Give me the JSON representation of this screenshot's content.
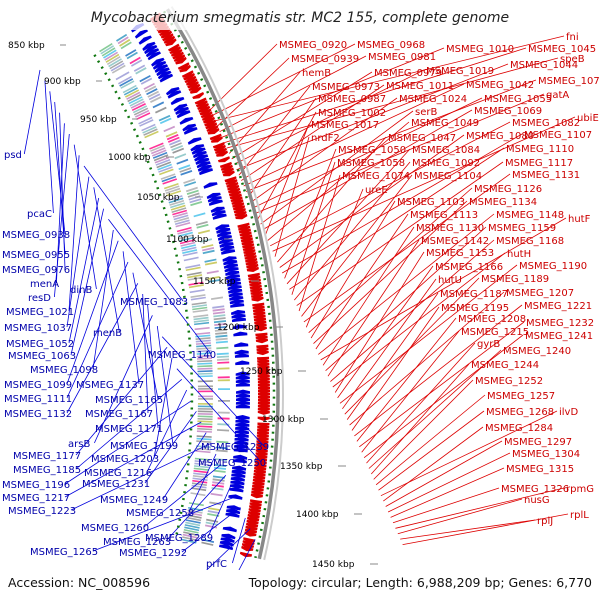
{
  "title": "Mycobacterium smegmatis str. MC2 155, complete genome",
  "footer": {
    "accession": "Accession: NC_008596",
    "summary": "Topology: circular; Length: 6,988,209 bp; Genes: 6,770"
  },
  "colors": {
    "forward_strand": "#dd0000",
    "reverse_strand": "#0000dd",
    "backbone": "#888888",
    "gc_marker": "#117711",
    "highlight_label": "#ccccdd"
  },
  "kbp_ticks": [
    "850 kbp",
    "900 kbp",
    "950 kbp",
    "1000 kbp",
    "1050 kbp",
    "1100 kbp",
    "1150 kbp",
    "1200 kbp",
    "1250 kbp",
    "1300 kbp",
    "1350 kbp",
    "1400 kbp",
    "1450 kbp"
  ],
  "forward_labels": [
    "MSMEG_0920",
    "MSMEG_0968",
    "fni",
    "MSMEG_0939",
    "MSMEG_0981",
    "MSMEG_1010",
    "MSMEG_1045",
    "speB",
    "hemB",
    "MSMEG_0979",
    "MSMEG_1019",
    "MSMEG_1044",
    "MSMEG_0973",
    "MSMEG_1011",
    "MSMEG_1042",
    "MSMEG_1070",
    "MSMEG_0987",
    "MSMEG_1024",
    "MSMEG_1055",
    "gatA",
    "MSMEG_1002",
    "serB",
    "MSMEG_1069",
    "MSMEG_1017",
    "MSMEG_1049",
    "MSMEG_1082",
    "ubiE",
    "nrdF2",
    "MSMEG_1047",
    "MSMEG_1080",
    "MSMEG_1107",
    "MSMEG_1050",
    "MSMEG_1084",
    "MSMEG_1110",
    "MSMEG_1058",
    "MSMEG_1092",
    "MSMEG_1117",
    "MSMEG_1074",
    "MSMEG_1104",
    "MSMEG_1131",
    "ureE",
    "MSMEG_1126",
    "MSMEG_1103",
    "MSMEG_1134",
    "MSMEG_1113",
    "MSMEG_1148",
    "hutF",
    "MSMEG_1130",
    "MSMEG_1159",
    "MSMEG_1142",
    "MSMEG_1168",
    "hutH",
    "MSMEG_1153",
    "MSMEG_1166",
    "MSMEG_1190",
    "hutU",
    "MSMEG_1189",
    "MSMEG_1187",
    "MSMEG_1207",
    "MSMEG_1195",
    "MSMEG_1221",
    "MSMEG_1208",
    "MSMEG_1232",
    "MSMEG_1215",
    "MSMEG_1241",
    "gyrB",
    "MSMEG_1240",
    "MSMEG_1244",
    "MSMEG_1252",
    "MSMEG_1257",
    "MSMEG_1268",
    "ilvD",
    "MSMEG_1284",
    "MSMEG_1297",
    "MSMEG_1304",
    "MSMEG_1315",
    "MSMEG_1326",
    "rpmG",
    "nusG",
    "rplJ",
    "rplL"
  ],
  "reverse_labels": [
    "psd",
    "pcaC",
    "MSMEG_0938",
    "MSMEG_0955",
    "MSMEG_0976",
    "menA",
    "resD",
    "dinB",
    "MSMEG_1021",
    "MSMEG_1083",
    "MSMEG_1037",
    "menB",
    "MSMEG_1052",
    "MSMEG_1063",
    "MSMEG_1140",
    "MSMEG_1098",
    "MSMEG_1099",
    "MSMEG_1137",
    "MSMEG_1111",
    "MSMEG_1165",
    "MSMEG_1132",
    "MSMEG_1167",
    "MSMEG_1171",
    "arsB",
    "MSMEG_1199",
    "MSMEG_1239",
    "MSMEG_1177",
    "MSMEG_1203",
    "MSMEG_1250",
    "MSMEG_1185",
    "MSMEG_1216",
    "MSMEG_1196",
    "MSMEG_1231",
    "MSMEG_1217",
    "MSMEG_1249",
    "MSMEG_1223",
    "MSMEG_1258",
    "MSMEG_1260",
    "MSMEG_1263",
    "MSMEG_1289",
    "MSMEG_1265",
    "MSMEG_1292",
    "prfC",
    "recD",
    "MSMEG_1351"
  ]
}
